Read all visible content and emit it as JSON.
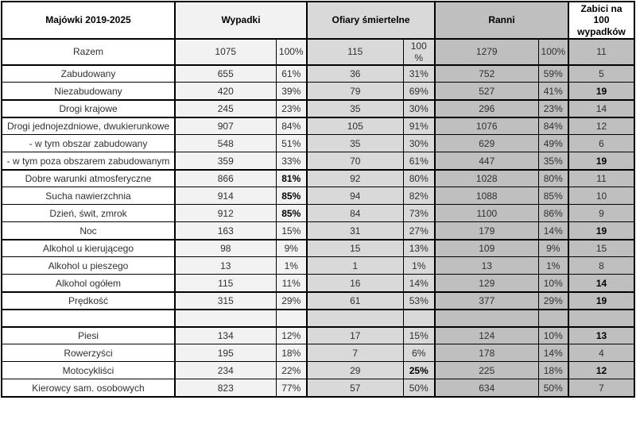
{
  "colors": {
    "border": "#000000",
    "label_column_bg": "#ffffff",
    "wypadki_column_bg": "#f2f2f2",
    "ofiary_column_bg": "#d9d9d9",
    "ranni_column_bg": "#bfbfbf",
    "zabici_column_bg": "#bfbfbf",
    "text": "#303030",
    "text_strong": "#000000"
  },
  "header": {
    "title": "Majówki 2019-2025",
    "wypadki": "Wypadki",
    "ofiary": "Ofiary śmiertelne",
    "ranni": "Ranni",
    "zabici": "Zabici na\n100\nwypadków"
  },
  "chart_data": {
    "type": "table",
    "title": "Majówki 2019-2025",
    "column_groups": [
      {
        "label": "Majówki 2019-2025",
        "subcolumns": [
          "label"
        ]
      },
      {
        "label": "Wypadki",
        "subcolumns": [
          "count",
          "percent"
        ]
      },
      {
        "label": "Ofiary śmiertelne",
        "subcolumns": [
          "count",
          "percent"
        ]
      },
      {
        "label": "Ranni",
        "subcolumns": [
          "count",
          "percent"
        ]
      },
      {
        "label": "Zabici na 100 wypadków",
        "subcolumns": [
          "value"
        ]
      }
    ],
    "rows": [
      {
        "label": "Razem",
        "wypadki": "1075",
        "wypadki_pct": "100%",
        "ofiary": "115",
        "ofiary_pct": "100\n%",
        "ranni": "1279",
        "ranni_pct": "100%",
        "zabici": "11",
        "bold": [],
        "group_start": true,
        "tall": true
      },
      {
        "label": "Zabudowany",
        "wypadki": "655",
        "wypadki_pct": "61%",
        "ofiary": "36",
        "ofiary_pct": "31%",
        "ranni": "752",
        "ranni_pct": "59%",
        "zabici": "5",
        "bold": [],
        "group_start": true
      },
      {
        "label": "Niezabudowany",
        "wypadki": "420",
        "wypadki_pct": "39%",
        "ofiary": "79",
        "ofiary_pct": "69%",
        "ranni": "527",
        "ranni_pct": "41%",
        "zabici": "19",
        "bold": [
          "zabici"
        ]
      },
      {
        "label": "Drogi krajowe",
        "wypadki": "245",
        "wypadki_pct": "23%",
        "ofiary": "35",
        "ofiary_pct": "30%",
        "ranni": "296",
        "ranni_pct": "23%",
        "zabici": "14",
        "bold": [],
        "group_start": true
      },
      {
        "label": "Drogi jednojezdniowe, dwukierunkowe",
        "wypadki": "907",
        "wypadki_pct": "84%",
        "ofiary": "105",
        "ofiary_pct": "91%",
        "ranni": "1076",
        "ranni_pct": "84%",
        "zabici": "12",
        "bold": [],
        "group_start": true
      },
      {
        "label": "- w tym obszar zabudowany",
        "wypadki": "548",
        "wypadki_pct": "51%",
        "ofiary": "35",
        "ofiary_pct": "30%",
        "ranni": "629",
        "ranni_pct": "49%",
        "zabici": "6",
        "bold": []
      },
      {
        "label": "- w tym poza obszarem zabudowanym",
        "wypadki": "359",
        "wypadki_pct": "33%",
        "ofiary": "70",
        "ofiary_pct": "61%",
        "ranni": "447",
        "ranni_pct": "35%",
        "zabici": "19",
        "bold": [
          "zabici"
        ]
      },
      {
        "label": "Dobre warunki atmosferyczne",
        "wypadki": "866",
        "wypadki_pct": "81%",
        "ofiary": "92",
        "ofiary_pct": "80%",
        "ranni": "1028",
        "ranni_pct": "80%",
        "zabici": "11",
        "bold": [
          "wypadki_pct"
        ],
        "group_start": true
      },
      {
        "label": "Sucha nawierzchnia",
        "wypadki": "914",
        "wypadki_pct": "85%",
        "ofiary": "94",
        "ofiary_pct": "82%",
        "ranni": "1088",
        "ranni_pct": "85%",
        "zabici": "10",
        "bold": [
          "wypadki_pct"
        ]
      },
      {
        "label": "Dzień, świt, zmrok",
        "wypadki": "912",
        "wypadki_pct": "85%",
        "ofiary": "84",
        "ofiary_pct": "73%",
        "ranni": "1100",
        "ranni_pct": "86%",
        "zabici": "9",
        "bold": [
          "wypadki_pct"
        ]
      },
      {
        "label": "Noc",
        "wypadki": "163",
        "wypadki_pct": "15%",
        "ofiary": "31",
        "ofiary_pct": "27%",
        "ranni": "179",
        "ranni_pct": "14%",
        "zabici": "19",
        "bold": [
          "zabici"
        ]
      },
      {
        "label": "Alkohol u kierującego",
        "wypadki": "98",
        "wypadki_pct": "9%",
        "ofiary": "15",
        "ofiary_pct": "13%",
        "ranni": "109",
        "ranni_pct": "9%",
        "zabici": "15",
        "bold": [],
        "group_start": true
      },
      {
        "label": "Alkohol u pieszego",
        "wypadki": "13",
        "wypadki_pct": "1%",
        "ofiary": "1",
        "ofiary_pct": "1%",
        "ranni": "13",
        "ranni_pct": "1%",
        "zabici": "8",
        "bold": []
      },
      {
        "label": "Alkohol ogółem",
        "wypadki": "115",
        "wypadki_pct": "11%",
        "ofiary": "16",
        "ofiary_pct": "14%",
        "ranni": "129",
        "ranni_pct": "10%",
        "zabici": "14",
        "bold": [
          "zabici"
        ]
      },
      {
        "label": "Prędkość",
        "wypadki": "315",
        "wypadki_pct": "29%",
        "ofiary": "61",
        "ofiary_pct": "53%",
        "ranni": "377",
        "ranni_pct": "29%",
        "zabici": "19",
        "bold": [
          "zabici"
        ],
        "group_start": true
      },
      {
        "label": "",
        "wypadki": "",
        "wypadki_pct": "",
        "ofiary": "",
        "ofiary_pct": "",
        "ranni": "",
        "ranni_pct": "",
        "zabici": "",
        "bold": [],
        "group_start": true,
        "spacer": true
      },
      {
        "label": "Piesi",
        "wypadki": "134",
        "wypadki_pct": "12%",
        "ofiary": "17",
        "ofiary_pct": "15%",
        "ranni": "124",
        "ranni_pct": "10%",
        "zabici": "13",
        "bold": [
          "zabici"
        ],
        "group_start": true
      },
      {
        "label": "Rowerzyści",
        "wypadki": "195",
        "wypadki_pct": "18%",
        "ofiary": "7",
        "ofiary_pct": "6%",
        "ranni": "178",
        "ranni_pct": "14%",
        "zabici": "4",
        "bold": []
      },
      {
        "label": "Motocykliści",
        "wypadki": "234",
        "wypadki_pct": "22%",
        "ofiary": "29",
        "ofiary_pct": "25%",
        "ranni": "225",
        "ranni_pct": "18%",
        "zabici": "12",
        "bold": [
          "ofiary_pct",
          "zabici"
        ]
      },
      {
        "label": "Kierowcy sam. osobowych",
        "wypadki": "823",
        "wypadki_pct": "77%",
        "ofiary": "57",
        "ofiary_pct": "50%",
        "ranni": "634",
        "ranni_pct": "50%",
        "zabici": "7",
        "bold": []
      }
    ]
  }
}
